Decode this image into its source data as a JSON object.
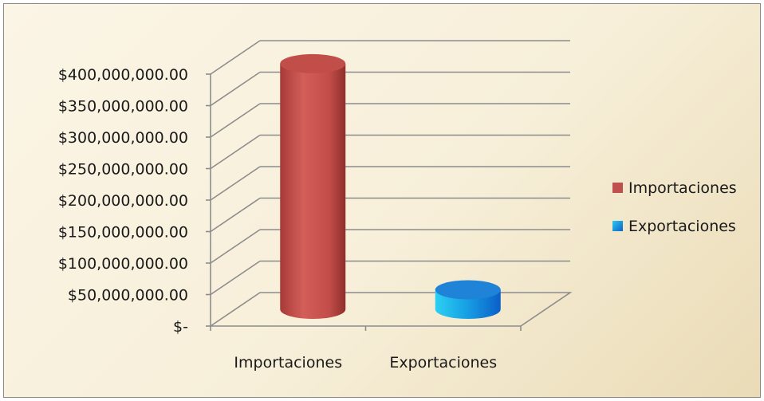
{
  "chart_data": {
    "type": "bar",
    "categories": [
      "Importaciones",
      "Exportaciones"
    ],
    "values": [
      390000000,
      31000000
    ],
    "colors": [
      "#c0504d",
      "#1e8fdc"
    ],
    "ylim": [
      0,
      400000000
    ],
    "ytick_values": [
      0,
      50000000,
      100000000,
      150000000,
      200000000,
      250000000,
      300000000,
      350000000,
      400000000
    ],
    "ytick_labels": [
      "$-",
      "$50,000,000.00",
      "$100,000,000.00",
      "$150,000,000.00",
      "$200,000,000.00",
      "$250,000,000.00",
      "$300,000,000.00",
      "$350,000,000.00",
      "$400,000,000.00"
    ],
    "legend": {
      "placement": "right",
      "entries": [
        "Importaciones",
        "Exportaciones"
      ]
    },
    "grid": true,
    "style": "3d-cylinder",
    "title": "",
    "xlabel": "",
    "ylabel": ""
  }
}
